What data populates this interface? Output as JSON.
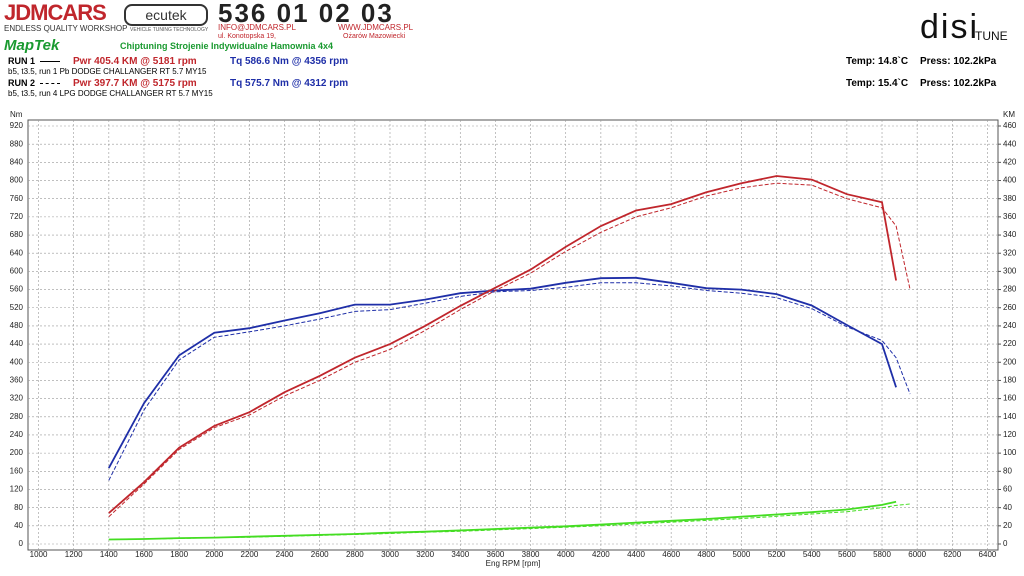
{
  "header": {
    "jdm": "JDMCARS",
    "jdm_sub": "ENDLESS QUALITY WORKSHOP",
    "ecutek": "ecutek",
    "ecutek_sub": "VEHICLE TUNING TECHNOLOGY",
    "phone": "536 01 02 03",
    "email": "INFO@JDMCARS.PL",
    "www": "WWW.JDMCARS.PL",
    "address": "ul. Konotopska 19,",
    "city": "Ożarów Mazowiecki",
    "maptek": "MapTek",
    "slogan": "Chiptuning Strojenie Indywidualne Hamownia 4x4",
    "disi": "disi",
    "tune": "TUNE",
    "run1": {
      "label": "RUN 1",
      "pwr": "Pwr  405.4 KM @ 5181 rpm",
      "tq": "Tq 586.6 Nm @ 4356 rpm",
      "desc": "b5, t3.5, run 1 Pb DODGE CHALLANGER RT 5.7 MY15",
      "temp": "Temp: 14.8`C",
      "press": "Press: 102.2kPa"
    },
    "run2": {
      "label": "RUN 2",
      "pwr": "Pwr  397.7 KM @ 5175 rpm",
      "tq": "Tq 575.7 Nm @ 4312 rpm",
      "desc": "b5, t3.5, run 4 LPG DODGE CHALLANGER RT 5.7 MY15",
      "temp": "Temp: 15.4`C",
      "press": "Press: 102.2kPa"
    }
  },
  "chart_data": {
    "type": "line",
    "xlabel": "Eng RPM [rpm]",
    "ylabel": "Nm",
    "y2label": "KM",
    "grid": true,
    "x": [
      1400,
      1600,
      1800,
      2000,
      2200,
      2400,
      2600,
      2800,
      3000,
      3200,
      3400,
      3600,
      3800,
      4000,
      4200,
      4400,
      4600,
      4800,
      5000,
      5200,
      5400,
      5600,
      5800,
      5880,
      5960
    ],
    "xlim": [
      940,
      6460
    ],
    "xticks": [
      1000,
      1200,
      1400,
      1600,
      1800,
      2000,
      2200,
      2400,
      2600,
      2800,
      3000,
      3200,
      3400,
      3600,
      3800,
      4000,
      4200,
      4400,
      4600,
      4800,
      5000,
      5200,
      5400,
      5600,
      5800,
      6000,
      6200,
      6400
    ],
    "ylim": [
      0,
      920
    ],
    "yticks": [
      0,
      40,
      80,
      120,
      160,
      200,
      240,
      280,
      320,
      360,
      400,
      440,
      480,
      520,
      560,
      600,
      640,
      680,
      720,
      760,
      800,
      840,
      880,
      920
    ],
    "y2lim": [
      0,
      460
    ],
    "y2ticks": [
      0,
      20,
      40,
      60,
      80,
      100,
      120,
      140,
      160,
      180,
      200,
      220,
      240,
      260,
      280,
      300,
      320,
      340,
      360,
      380,
      400,
      420,
      440,
      460
    ],
    "series": [
      {
        "color": "#1f2fa8",
        "dash": false,
        "values": [
          167,
          310,
          415,
          465,
          475,
          492,
          508,
          527,
          527,
          538,
          552,
          558,
          562,
          575,
          585,
          586,
          575,
          563,
          560,
          550,
          525,
          482,
          440,
          345,
          null
        ]
      },
      {
        "color": "#1f2fa8",
        "dash": true,
        "values": [
          140,
          295,
          405,
          455,
          467,
          480,
          495,
          512,
          516,
          530,
          545,
          555,
          558,
          565,
          575,
          575,
          568,
          558,
          552,
          542,
          518,
          478,
          448,
          410,
          330
        ]
      },
      {
        "color": "#c0262c",
        "dash": false,
        "axis": "y2",
        "values": [
          34,
          68,
          106,
          130,
          145,
          167,
          185,
          205,
          220,
          240,
          262,
          282,
          302,
          327,
          350,
          367,
          374,
          387,
          397,
          405,
          401,
          385,
          376,
          290,
          null
        ]
      },
      {
        "color": "#c0262c",
        "dash": true,
        "axis": "y2",
        "values": [
          30,
          66,
          104,
          128,
          142,
          163,
          180,
          200,
          214,
          235,
          258,
          279,
          298,
          322,
          343,
          360,
          370,
          383,
          392,
          397,
          395,
          380,
          370,
          350,
          280
        ]
      },
      {
        "color": "#44dd22",
        "dash": false,
        "values": [
          10,
          11,
          13,
          14,
          16,
          18,
          20,
          22,
          25,
          27,
          30,
          33,
          36,
          39,
          43,
          47,
          51,
          55,
          60,
          65,
          70,
          76,
          86,
          93,
          null
        ]
      },
      {
        "color": "#44dd22",
        "dash": true,
        "values": [
          10,
          11,
          12,
          14,
          15,
          17,
          19,
          21,
          23,
          26,
          28,
          31,
          34,
          37,
          40,
          44,
          48,
          52,
          56,
          61,
          66,
          71,
          80,
          85,
          88
        ]
      }
    ]
  }
}
